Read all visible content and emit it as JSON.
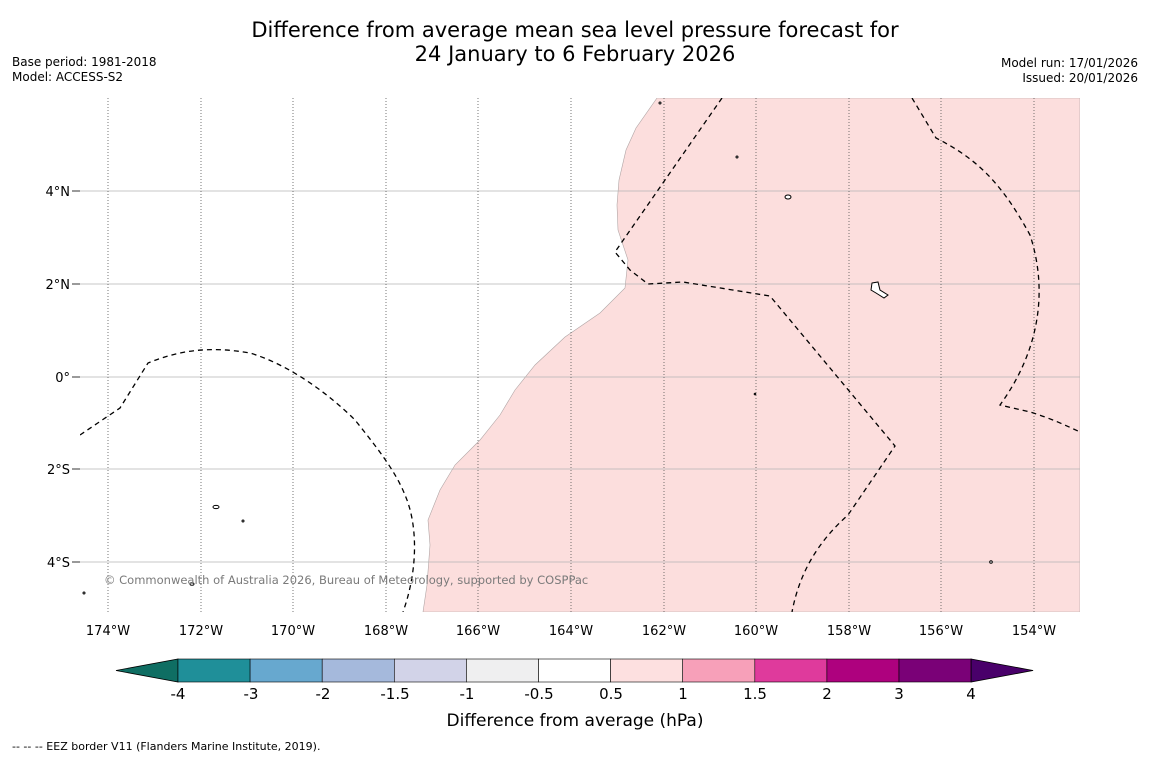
{
  "title": {
    "line1": "Difference from average mean sea level pressure forecast for",
    "line2": "24 January to 6 February 2026"
  },
  "meta_left": {
    "base_period": "Base period: 1981-2018",
    "model": "Model: ACCESS-S2"
  },
  "meta_right": {
    "model_run": "Model run: 17/01/2026",
    "issued": "Issued: 20/01/2026"
  },
  "map": {
    "lat_labels": [
      "4°N",
      "2°N",
      "0°",
      "2°S",
      "4°S"
    ],
    "lon_labels": [
      "174°W",
      "172°W",
      "170°W",
      "168°W",
      "166°W",
      "164°W",
      "162°W",
      "160°W",
      "158°W",
      "156°W",
      "154°W"
    ],
    "copyright": "© Commonwealth of Australia 2026, Bureau of Meteorology, supported by COSPPac",
    "anomaly_fill_color": "#fcdedd"
  },
  "colorbar": {
    "colors": [
      "#0f6e63",
      "#1f8f99",
      "#67a8cf",
      "#a5b9dc",
      "#d2d3e8",
      "#efeff0",
      "#ffffff",
      "#fde0e0",
      "#f7a0b9",
      "#df3a9c",
      "#ae017e",
      "#7a0177",
      "#49006a"
    ],
    "tick_labels": [
      "-4",
      "-3",
      "-2",
      "-1.5",
      "-1",
      "-0.5",
      "0.5",
      "1",
      "1.5",
      "2",
      "3",
      "4"
    ],
    "label": "Difference from average (hPa)"
  },
  "footnote": "--  --  -- EEZ border V11 (Flanders Marine Institute, 2019)."
}
